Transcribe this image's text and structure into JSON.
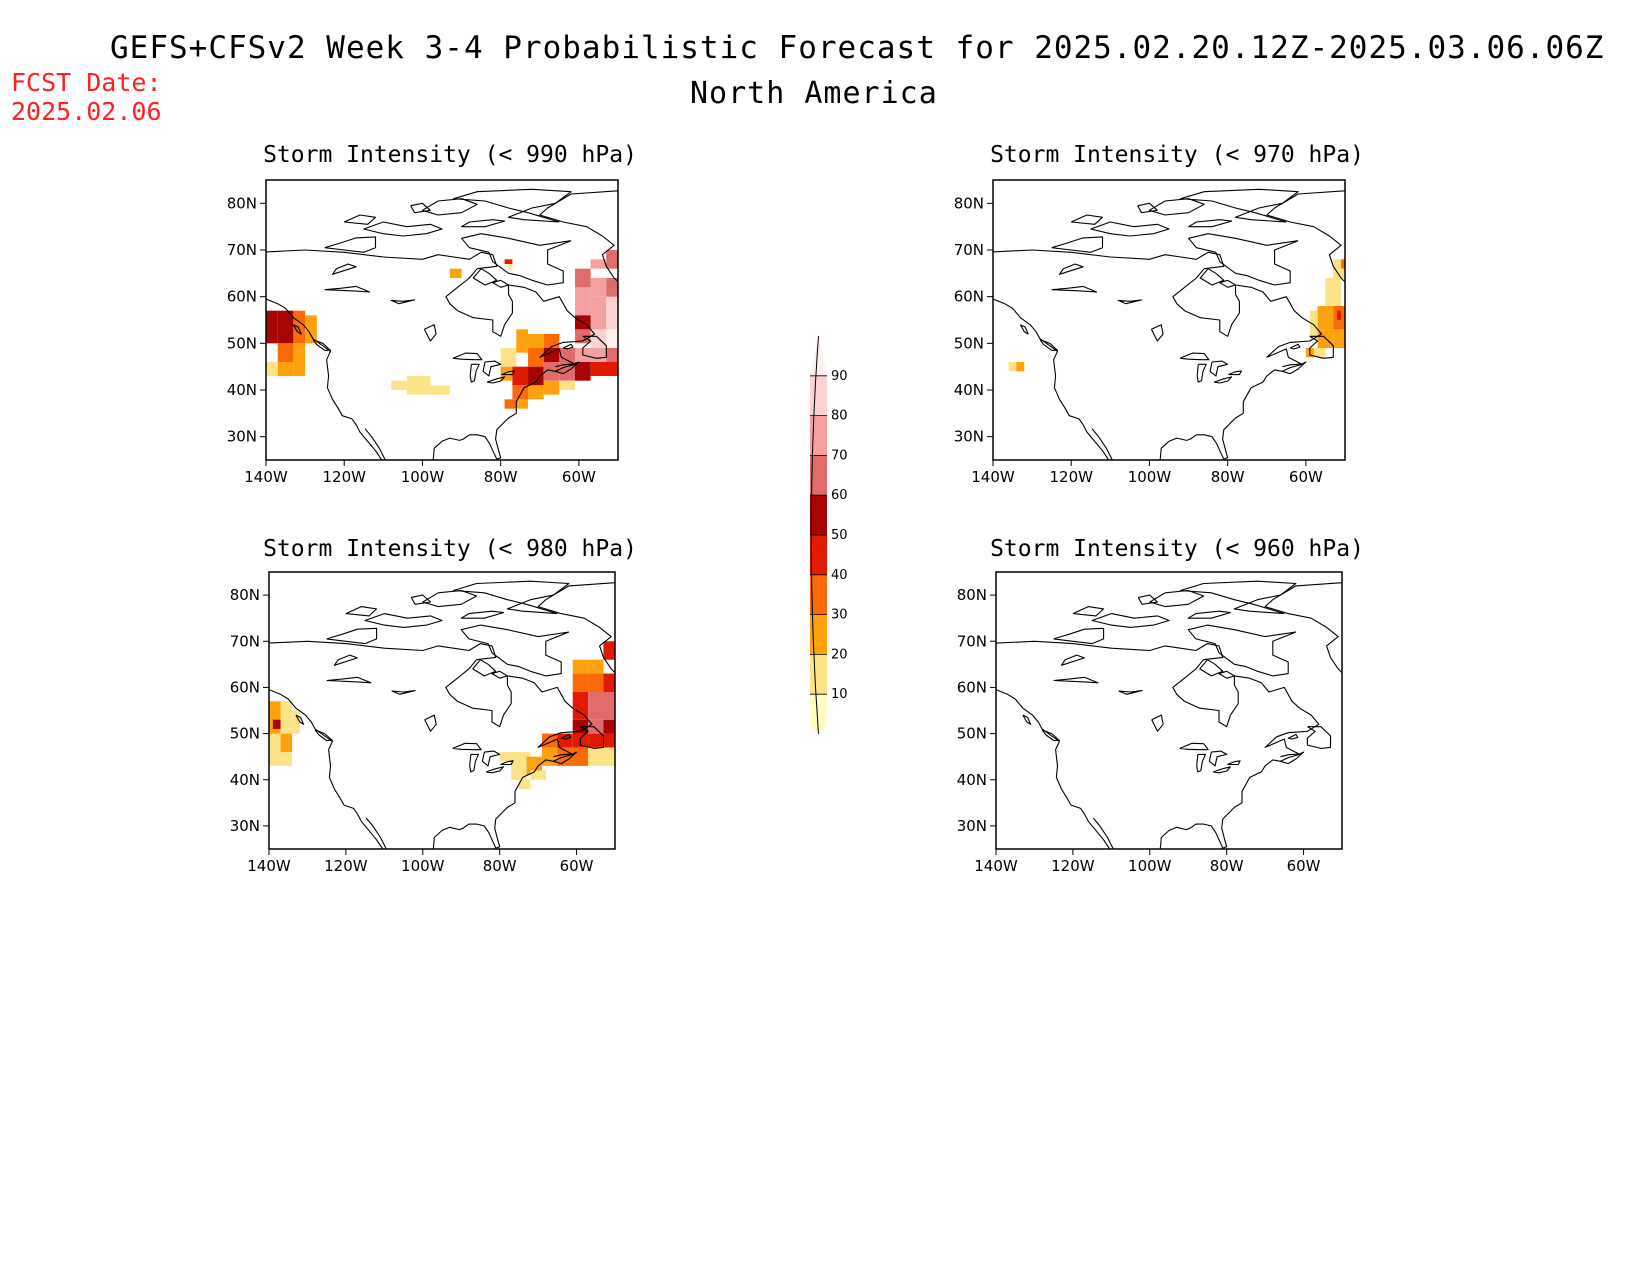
{
  "header": {
    "title": "GEFS+CFSv2 Week 3-4 Probabilistic Forecast for 2025.02.20.12Z-2025.03.06.06Z",
    "subtitle": "North America",
    "fcst_label": "FCST Date:",
    "fcst_value": "2025.02.06"
  },
  "colors": {
    "fcst_text": "#ff2020",
    "scale": [
      "#fffcc4",
      "#fde388",
      "#fda10f",
      "#fb6a09",
      "#e11a04",
      "#a70505",
      "#e06b6b",
      "#f2a0a0",
      "#fbd2d2",
      "#fff0f0"
    ]
  },
  "colorbar": {
    "levels": [
      "10",
      "20",
      "30",
      "40",
      "50",
      "60",
      "70",
      "80",
      "90"
    ]
  },
  "axes": {
    "lat_labels": [
      "30N",
      "40N",
      "50N",
      "60N",
      "70N",
      "80N"
    ],
    "lon_labels": [
      "140W",
      "120W",
      "100W",
      "80W",
      "60W"
    ],
    "lon_range": [
      -140,
      -50
    ],
    "lat_range": [
      25,
      85
    ]
  },
  "panels": [
    {
      "title": "Storm Intensity (< 990 hPa)",
      "threshold_hpa": 990
    },
    {
      "title": "Storm Intensity (< 970 hPa)",
      "threshold_hpa": 970
    },
    {
      "title": "Storm Intensity (< 980 hPa)",
      "threshold_hpa": 980
    },
    {
      "title": "Storm Intensity (< 960 hPa)",
      "threshold_hpa": 960
    }
  ],
  "probability_fields": {
    "990": [
      [
        -140,
        -137,
        43,
        46,
        1
      ],
      [
        -137,
        -133,
        43,
        46,
        2
      ],
      [
        -133,
        -130,
        43,
        46,
        2
      ],
      [
        -140,
        -137,
        50,
        57,
        5
      ],
      [
        -137,
        -133,
        50,
        57,
        5
      ],
      [
        -133,
        -130,
        50,
        57,
        3
      ],
      [
        -133,
        -130,
        46,
        50,
        2
      ],
      [
        -130,
        -127,
        50,
        56,
        2
      ],
      [
        -137,
        -133,
        46,
        50,
        3
      ],
      [
        -108,
        -104,
        40,
        42,
        1
      ],
      [
        -104,
        -98,
        39,
        43,
        1
      ],
      [
        -98,
        -93,
        39,
        41,
        1
      ],
      [
        -93,
        -90,
        64,
        66,
        2
      ],
      [
        -79,
        -77,
        67,
        68,
        4
      ],
      [
        -78,
        -77,
        66,
        67,
        1
      ],
      [
        -80,
        -76,
        45,
        49,
        1
      ],
      [
        -76,
        -73,
        48,
        53,
        2
      ],
      [
        -73,
        -69,
        45,
        49,
        3
      ],
      [
        -80,
        -77,
        42,
        45,
        2
      ],
      [
        -77,
        -73,
        41,
        45,
        4
      ],
      [
        -73,
        -69,
        41,
        45,
        5
      ],
      [
        -69,
        -65,
        42,
        46,
        6
      ],
      [
        -65,
        -61,
        42,
        46,
        6
      ],
      [
        -61,
        -57,
        42,
        46,
        5
      ],
      [
        -57,
        -50,
        43,
        46,
        4
      ],
      [
        -69,
        -65,
        46,
        49,
        5
      ],
      [
        -65,
        -61,
        46,
        49,
        6
      ],
      [
        -61,
        -57,
        46,
        49,
        7
      ],
      [
        -57,
        -53,
        46,
        49,
        7
      ],
      [
        -53,
        -50,
        46,
        49,
        6
      ],
      [
        -77,
        -73,
        38,
        41,
        3
      ],
      [
        -73,
        -69,
        38,
        41,
        2
      ],
      [
        -79,
        -76,
        36,
        38,
        3
      ],
      [
        -76,
        -73,
        36,
        38,
        2
      ],
      [
        -69,
        -65,
        39,
        42,
        2
      ],
      [
        -65,
        -61,
        40,
        42,
        1
      ],
      [
        -61,
        -57,
        50,
        53,
        6
      ],
      [
        -57,
        -53,
        49,
        53,
        8
      ],
      [
        -53,
        -50,
        49,
        53,
        9
      ],
      [
        -57,
        -53,
        53,
        60,
        7
      ],
      [
        -53,
        -50,
        53,
        60,
        8
      ],
      [
        -61,
        -57,
        56,
        62,
        7
      ],
      [
        -57,
        -53,
        60,
        64,
        7
      ],
      [
        -53,
        -50,
        60,
        64,
        6
      ],
      [
        -61,
        -57,
        62,
        66,
        6
      ],
      [
        -53,
        -50,
        66,
        70,
        6
      ],
      [
        -57,
        -53,
        66,
        68,
        7
      ],
      [
        -61,
        -57,
        53,
        56,
        5
      ],
      [
        -69,
        -65,
        49,
        52,
        3
      ],
      [
        -73,
        -69,
        49,
        52,
        2
      ]
    ],
    "970": [
      [
        -136,
        -134,
        44,
        46,
        1
      ],
      [
        -134,
        -132,
        44,
        46,
        2
      ],
      [
        -57,
        -53,
        49,
        53,
        2
      ],
      [
        -53,
        -50,
        49,
        53,
        2
      ],
      [
        -57,
        -53,
        53,
        58,
        2
      ],
      [
        -53,
        -50,
        53,
        58,
        3
      ],
      [
        -52,
        -51,
        55,
        57,
        4
      ],
      [
        -59,
        -57,
        51,
        57,
        1
      ],
      [
        -55,
        -51,
        58,
        64,
        1
      ],
      [
        -53,
        -50,
        64,
        68,
        1
      ],
      [
        -51,
        -50,
        66,
        68,
        3
      ],
      [
        -58,
        -55,
        47,
        49,
        1
      ],
      [
        -60,
        -58,
        47,
        49,
        2
      ]
    ],
    "980": [
      [
        -140,
        -137,
        43,
        46,
        1
      ],
      [
        -137,
        -134,
        43,
        46,
        1
      ],
      [
        -140,
        -137,
        46,
        50,
        1
      ],
      [
        -137,
        -134,
        46,
        50,
        2
      ],
      [
        -140,
        -137,
        50,
        57,
        2
      ],
      [
        -137,
        -134,
        50,
        57,
        1
      ],
      [
        -139,
        -137,
        51,
        53,
        5
      ],
      [
        -134,
        -132,
        50,
        55,
        1
      ],
      [
        -80,
        -76,
        44,
        46,
        1
      ],
      [
        -76,
        -72,
        44,
        46,
        1
      ],
      [
        -77,
        -73,
        40,
        44,
        1
      ],
      [
        -73,
        -69,
        41,
        45,
        2
      ],
      [
        -69,
        -65,
        43,
        47,
        2
      ],
      [
        -65,
        -61,
        43,
        47,
        3
      ],
      [
        -61,
        -57,
        43,
        47,
        3
      ],
      [
        -57,
        -50,
        43,
        47,
        1
      ],
      [
        -69,
        -65,
        47,
        50,
        3
      ],
      [
        -65,
        -61,
        47,
        50,
        4
      ],
      [
        -61,
        -57,
        47,
        50,
        4
      ],
      [
        -57,
        -53,
        47,
        50,
        4
      ],
      [
        -53,
        -50,
        47,
        50,
        4
      ],
      [
        -61,
        -57,
        50,
        53,
        5
      ],
      [
        -57,
        -53,
        50,
        53,
        6
      ],
      [
        -53,
        -50,
        50,
        53,
        5
      ],
      [
        -61,
        -57,
        53,
        59,
        4
      ],
      [
        -57,
        -53,
        53,
        59,
        6
      ],
      [
        -53,
        -50,
        53,
        59,
        6
      ],
      [
        -61,
        -57,
        59,
        63,
        3
      ],
      [
        -57,
        -53,
        59,
        63,
        3
      ],
      [
        -53,
        -50,
        59,
        63,
        4
      ],
      [
        -61,
        -57,
        63,
        66,
        2
      ],
      [
        -57,
        -53,
        63,
        66,
        2
      ],
      [
        -53,
        -50,
        66,
        70,
        4
      ],
      [
        -72,
        -68,
        40,
        42,
        1
      ],
      [
        -75,
        -72,
        38,
        40,
        1
      ]
    ],
    "960": []
  }
}
